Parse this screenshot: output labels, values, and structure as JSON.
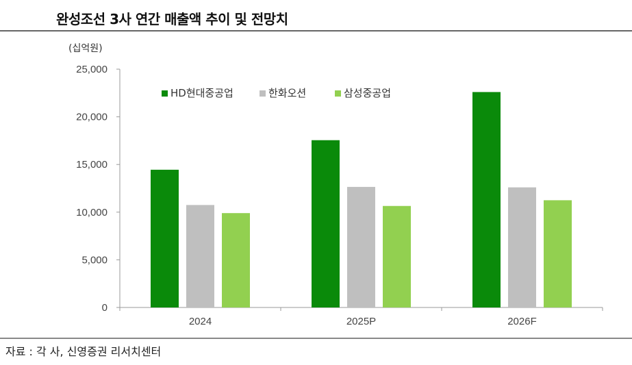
{
  "title": "완성조선 3사 연간 매출액 추이 및 전망치",
  "source": "자료 : 각 사, 신영증권 리서치센터",
  "chart_data": {
    "type": "bar",
    "unit_label": "(십억원)",
    "categories": [
      "2024",
      "2025P",
      "2026F"
    ],
    "series": [
      {
        "name": "HD현대중공업",
        "color": "#0a8a0a",
        "values": [
          14450,
          17550,
          22600
        ]
      },
      {
        "name": "한화오션",
        "color": "#bfbfbf",
        "values": [
          10750,
          12650,
          12600
        ]
      },
      {
        "name": "삼성중공업",
        "color": "#92d050",
        "values": [
          9900,
          10650,
          11250
        ]
      }
    ],
    "ylim": [
      0,
      25000
    ],
    "yticks": [
      0,
      5000,
      10000,
      15000,
      20000,
      25000
    ],
    "ytick_labels": [
      "0",
      "5,000",
      "10,000",
      "15,000",
      "20,000",
      "25,000"
    ],
    "legend_position": "top-left",
    "grid": false
  }
}
